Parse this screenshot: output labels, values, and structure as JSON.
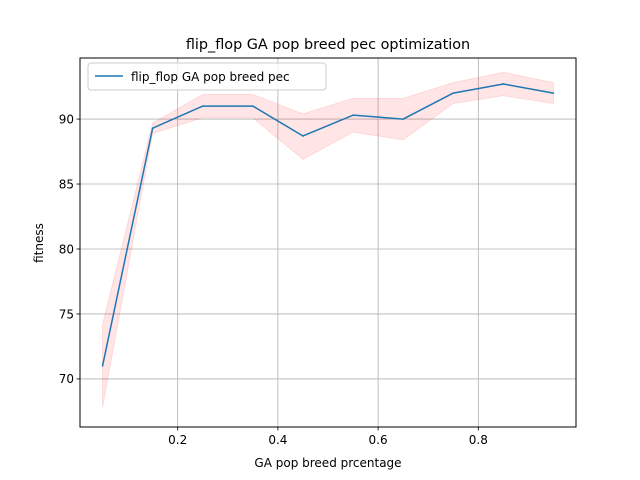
{
  "chart_data": {
    "type": "line",
    "title": "flip_flop GA pop breed pec optimization",
    "xlabel": "GA pop breed prcentage",
    "ylabel": "fitness",
    "xlim": [
      0.005,
      0.995
    ],
    "ylim": [
      66.3,
      94.7
    ],
    "xticks": [
      0.2,
      0.4,
      0.6,
      0.8
    ],
    "xtick_labels": [
      "0.2",
      "0.4",
      "0.6",
      "0.8"
    ],
    "yticks": [
      70,
      75,
      80,
      85,
      90
    ],
    "ytick_labels": [
      "70",
      "75",
      "80",
      "85",
      "90"
    ],
    "grid": true,
    "legend_position": "upper-left",
    "series": [
      {
        "name": "flip_flop GA pop breed pec",
        "color": "#1f77b4",
        "x": [
          0.05,
          0.15,
          0.25,
          0.35,
          0.45,
          0.55,
          0.65,
          0.75,
          0.85,
          0.95
        ],
        "y": [
          71.0,
          89.3,
          91.0,
          91.0,
          88.7,
          90.3,
          90.0,
          92.0,
          92.7,
          92.0
        ],
        "band_lower": [
          67.8,
          88.9,
          90.1,
          90.1,
          86.9,
          89.0,
          88.4,
          91.2,
          91.8,
          91.2
        ],
        "band_upper": [
          74.2,
          89.7,
          91.9,
          91.9,
          90.4,
          91.6,
          91.6,
          92.8,
          93.6,
          92.8
        ],
        "band_color": "#ff0000"
      }
    ]
  }
}
